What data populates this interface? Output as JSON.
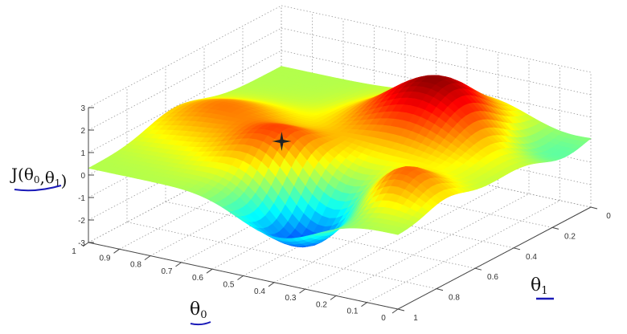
{
  "chart_data": {
    "type": "surface",
    "title": "",
    "zlabel": "J(θ0,θ1)",
    "xlabel": "θ0",
    "ylabel": "θ1",
    "x_range": [
      0,
      1
    ],
    "y_range": [
      0,
      1
    ],
    "z_range": [
      -3,
      3
    ],
    "x_ticks": [
      "1",
      "0.9",
      "0.8",
      "0.7",
      "0.6",
      "0.5",
      "0.4",
      "0.3",
      "0.2",
      "0.1",
      "0"
    ],
    "y_ticks": [
      "0",
      "0.2",
      "0.4",
      "0.6",
      "0.8",
      "1"
    ],
    "z_ticks": [
      "-3",
      "-2",
      "-1",
      "0",
      "1",
      "2",
      "3"
    ],
    "grid": true,
    "colormap": "jet",
    "surface_model": {
      "baseline": 0.3,
      "components": [
        {
          "theta0": 0.55,
          "theta1": 0.72,
          "amplitude": 2.0,
          "width": 0.12
        },
        {
          "theta0": 0.33,
          "theta1": 0.26,
          "amplitude": 2.7,
          "width": 0.16
        },
        {
          "theta0": 0.4,
          "theta1": 0.85,
          "amplitude": -2.6,
          "width": 0.13
        },
        {
          "theta0": 0.85,
          "theta1": 0.55,
          "amplitude": 1.2,
          "width": 0.14
        },
        {
          "theta0": 0.15,
          "theta1": 0.75,
          "amplitude": 1.6,
          "width": 0.1
        },
        {
          "theta0": 0.1,
          "theta1": 0.15,
          "amplitude": -1.0,
          "width": 0.12
        }
      ]
    },
    "marker": {
      "theta0": 0.55,
      "theta1": 0.72,
      "symbol": "star"
    },
    "annotation_color": "#1a1ab8"
  }
}
